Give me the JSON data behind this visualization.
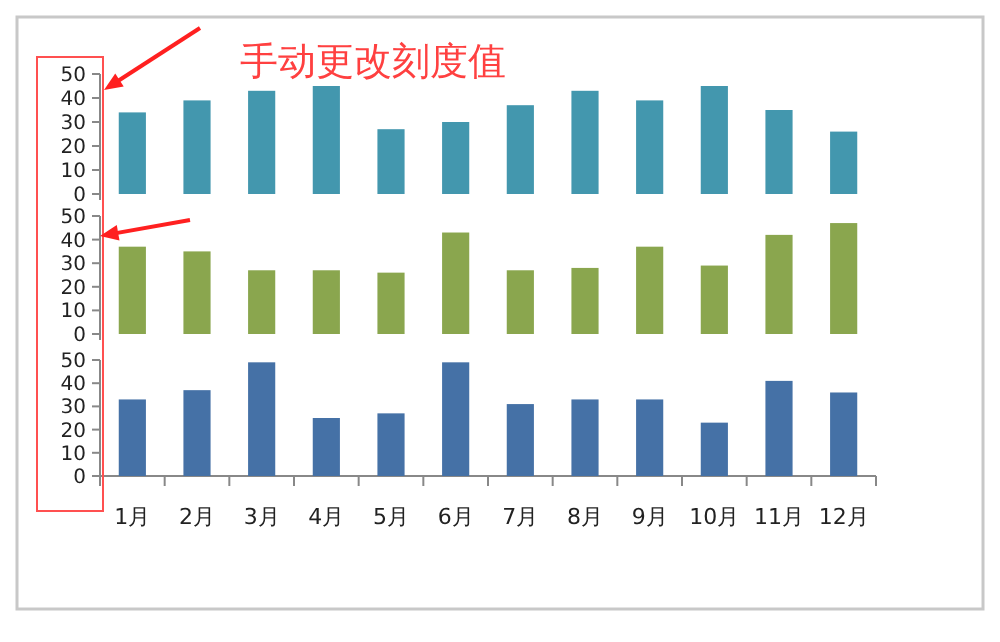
{
  "chart_data": [
    {
      "type": "bar",
      "values": [
        34,
        39,
        43,
        45,
        27,
        30,
        37,
        43,
        39,
        45,
        35,
        26
      ],
      "color": "#4397ae",
      "ylim": [
        0,
        50
      ],
      "yticks": [
        0,
        10,
        20,
        30,
        40,
        50
      ],
      "tick_labels": "y",
      "annotations": [
        "手动更改刻度值"
      ]
    },
    {
      "type": "bar",
      "values": [
        37,
        35,
        27,
        27,
        26,
        43,
        27,
        28,
        37,
        29,
        42,
        47
      ],
      "color": "#8aa64e",
      "ylim": [
        0,
        50
      ],
      "yticks": [
        0,
        10,
        20,
        30,
        40,
        50
      ],
      "tick_labels": "y"
    },
    {
      "type": "bar",
      "categories": [
        "1月",
        "2月",
        "3月",
        "4月",
        "5月",
        "6月",
        "7月",
        "8月",
        "9月",
        "10月",
        "11月",
        "12月"
      ],
      "values": [
        33,
        37,
        49,
        25,
        27,
        49,
        31,
        33,
        33,
        23,
        41,
        36
      ],
      "color": "#4571a6",
      "ylim": [
        0,
        50
      ],
      "yticks": [
        0,
        10,
        20,
        30,
        40,
        50
      ]
    }
  ]
}
